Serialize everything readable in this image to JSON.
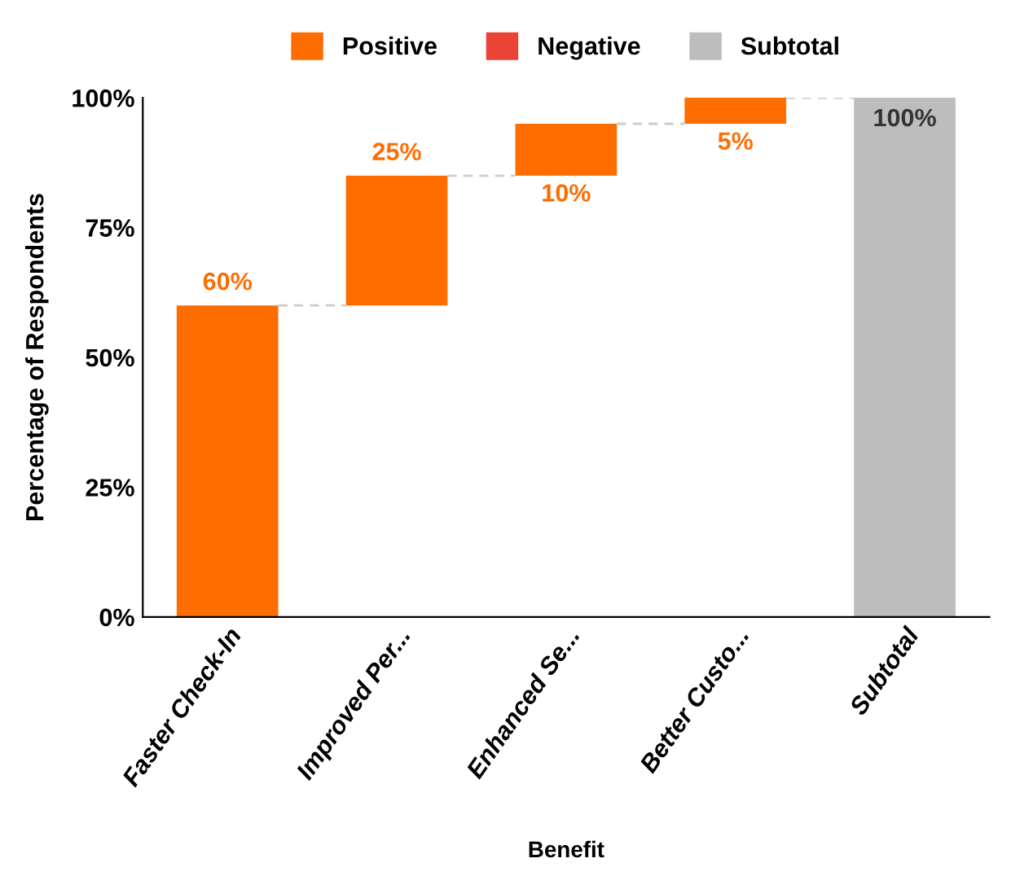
{
  "chart_data": {
    "type": "bar",
    "xlabel": "Benefit",
    "ylabel": "Percentage of Respondents",
    "categories": [
      "Faster Check-In",
      "Improved Per...",
      "Enhanced Se...",
      "Better Custo...",
      "Subtotal"
    ],
    "series": [
      {
        "name": "Positive",
        "color": "#ff6d01",
        "base": [
          0,
          60,
          85,
          95,
          null
        ],
        "values": [
          60,
          25,
          10,
          5,
          null
        ],
        "value_labels": [
          "60%",
          "25%",
          "10%",
          "5%",
          null
        ]
      },
      {
        "name": "Negative",
        "color": "#ea4335",
        "values": [
          null,
          null,
          null,
          null,
          null
        ]
      },
      {
        "name": "Subtotal",
        "color": "#bdbdbd",
        "base": [
          null,
          null,
          null,
          null,
          0
        ],
        "values": [
          null,
          null,
          null,
          null,
          100
        ],
        "value_labels": [
          null,
          null,
          null,
          null,
          "100%"
        ]
      }
    ],
    "ylim": [
      0,
      100
    ],
    "yticks": [
      {
        "value": 0,
        "label": "0%"
      },
      {
        "value": 25,
        "label": "25%"
      },
      {
        "value": 50,
        "label": "50%"
      },
      {
        "value": 75,
        "label": "75%"
      },
      {
        "value": 100,
        "label": "100%"
      }
    ],
    "grid": false,
    "legend": "top"
  }
}
